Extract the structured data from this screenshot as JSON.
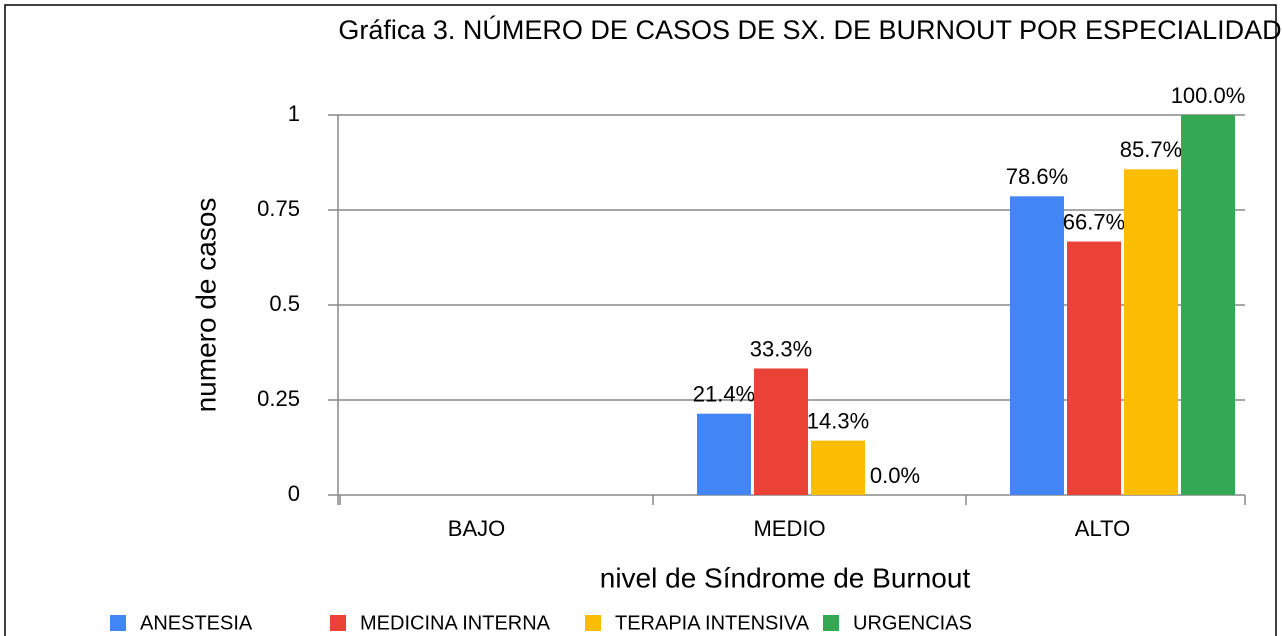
{
  "chart_data": {
    "type": "bar",
    "title": "Gráfica 3. NÚMERO DE CASOS DE SX. DE BURNOUT POR ESPECIALIDAD",
    "x_label": "nivel de Síndrome de Burnout",
    "y_label": "numero de casos",
    "categories": [
      "BAJO",
      "MEDIO",
      "ALTO"
    ],
    "series": [
      {
        "name": "ANESTESIA",
        "color": "#4285f4",
        "values": [
          null,
          0.214,
          0.786
        ],
        "value_labels": [
          null,
          "21.4%",
          "78.6%"
        ]
      },
      {
        "name": "MEDICINA INTERNA",
        "color": "#ea4335",
        "values": [
          null,
          0.333,
          0.667
        ],
        "value_labels": [
          null,
          "33.3%",
          "66.7%"
        ]
      },
      {
        "name": "TERAPIA INTENSIVA",
        "color": "#fbbc04",
        "values": [
          null,
          0.143,
          0.857
        ],
        "value_labels": [
          null,
          "14.3%",
          "85.7%"
        ]
      },
      {
        "name": "URGENCIAS",
        "color": "#34a853",
        "values": [
          null,
          0,
          1.0
        ],
        "value_labels": [
          null,
          "0.0%",
          "100.0%"
        ]
      }
    ],
    "ylim": [
      0,
      1
    ],
    "yticks": [
      0,
      0.25,
      0.5,
      0.75,
      1
    ],
    "grid": true,
    "legend": "bottom"
  }
}
